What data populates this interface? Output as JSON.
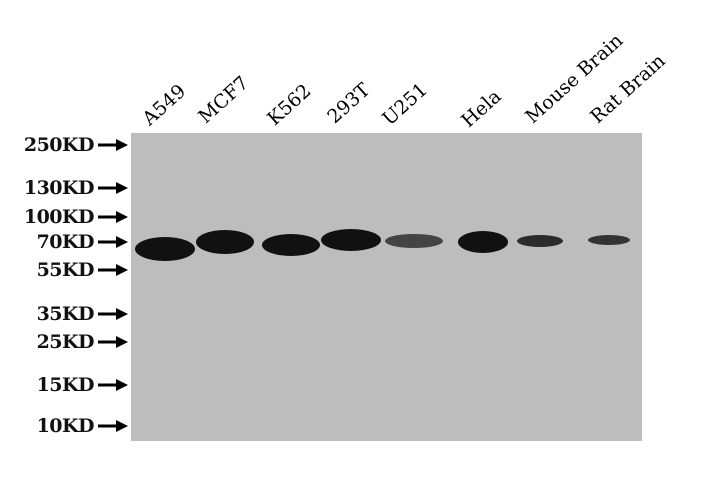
{
  "colors": {
    "membrane": "#bdbdbd",
    "band": "#111111"
  },
  "lanes": [
    {
      "label": "A549",
      "intensity": 1.0
    },
    {
      "label": "MCF7",
      "intensity": 1.0
    },
    {
      "label": "K562",
      "intensity": 1.0
    },
    {
      "label": "293T",
      "intensity": 1.0
    },
    {
      "label": "U251",
      "intensity": 0.7
    },
    {
      "label": "Hela",
      "intensity": 1.0
    },
    {
      "label": "Mouse Brain",
      "intensity": 0.85
    },
    {
      "label": "Rat Brain",
      "intensity": 0.8
    }
  ],
  "markers": [
    {
      "label": "250KD"
    },
    {
      "label": "130KD"
    },
    {
      "label": "100KD"
    },
    {
      "label": "70KD"
    },
    {
      "label": "55KD"
    },
    {
      "label": "35KD"
    },
    {
      "label": "25KD"
    },
    {
      "label": "15KD"
    },
    {
      "label": "10KD"
    }
  ]
}
